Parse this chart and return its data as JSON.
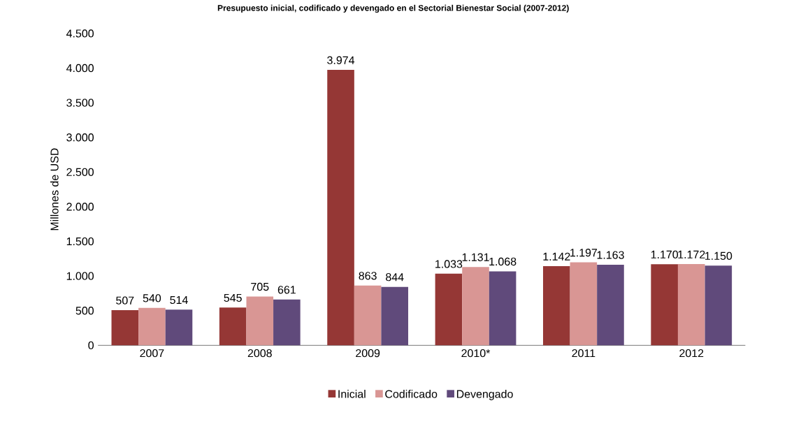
{
  "chart_data": {
    "type": "bar",
    "title": "Presupuesto inicial, codificado y devengado en el Sectorial Bienestar Social (2007-2012)",
    "ylabel": "Millones de USD",
    "categories": [
      "2007",
      "2008",
      "2009",
      "2010*",
      "2011",
      "2012"
    ],
    "series": [
      {
        "name": "Inicial",
        "color": "#953735",
        "values": [
          507,
          545,
          3974,
          1033,
          1142,
          1170
        ],
        "value_labels": [
          "507",
          "545",
          "3.974",
          "1.033",
          "1.142",
          "1.170"
        ]
      },
      {
        "name": "Codificado",
        "color": "#d99694",
        "values": [
          540,
          705,
          863,
          1131,
          1197,
          1172
        ],
        "value_labels": [
          "540",
          "705",
          "863",
          "1.131",
          "1.197",
          "1.172"
        ]
      },
      {
        "name": "Devengado",
        "color": "#604a7b",
        "values": [
          514,
          661,
          844,
          1068,
          1163,
          1150
        ],
        "value_labels": [
          "514",
          "661",
          "844",
          "1.068",
          "1.163",
          "1.150"
        ]
      }
    ],
    "ylim": [
      0,
      4500
    ],
    "yticks": [
      0,
      {
        "value": 500,
        "label": "500"
      },
      {
        "value": 1000,
        "label": "1.000"
      },
      {
        "value": 1500,
        "label": "1.500"
      },
      {
        "value": 2000,
        "label": "2.000"
      },
      {
        "value": 2500,
        "label": "2.500"
      },
      {
        "value": 3000,
        "label": "3.000"
      },
      {
        "value": 3500,
        "label": "3.500"
      },
      {
        "value": 4000,
        "label": "4.000"
      },
      {
        "value": 4500,
        "label": "4.500"
      }
    ],
    "grid": false,
    "legend": "bottom"
  }
}
